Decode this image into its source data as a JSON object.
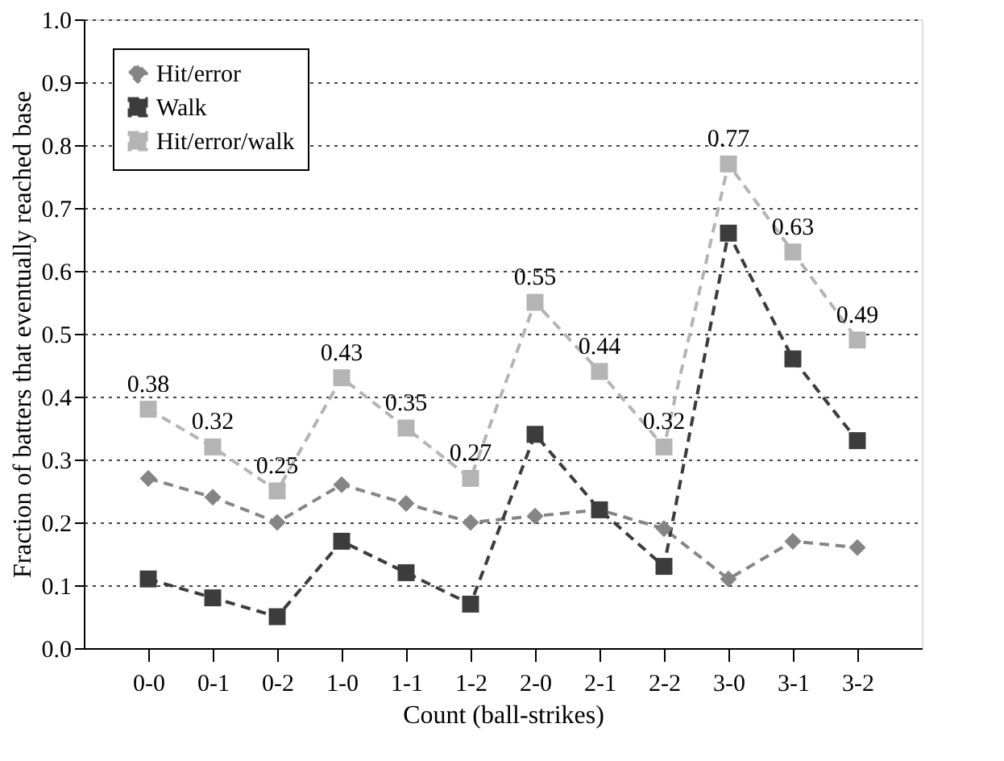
{
  "chart_data": {
    "type": "line",
    "xlabel": "Count (ball-strikes)",
    "ylabel": "Fraction of batters that eventually reached base",
    "categories": [
      "0-0",
      "0-1",
      "0-2",
      "1-0",
      "1-1",
      "1-2",
      "2-0",
      "2-1",
      "2-2",
      "3-0",
      "3-1",
      "3-2"
    ],
    "series": [
      {
        "name": "Hit/error",
        "color": "#858585",
        "marker": "diamond",
        "values": [
          0.27,
          0.24,
          0.2,
          0.26,
          0.23,
          0.2,
          0.21,
          0.22,
          0.19,
          0.11,
          0.17,
          0.16
        ]
      },
      {
        "name": "Walk",
        "color": "#3c3c3c",
        "marker": "square",
        "values": [
          0.11,
          0.08,
          0.05,
          0.17,
          0.12,
          0.07,
          0.34,
          0.22,
          0.13,
          0.66,
          0.46,
          0.33
        ]
      },
      {
        "name": "Hit/error/walk",
        "color": "#b4b4b4",
        "marker": "square",
        "values": [
          0.38,
          0.32,
          0.25,
          0.43,
          0.35,
          0.27,
          0.55,
          0.44,
          0.32,
          0.77,
          0.63,
          0.49
        ],
        "value_labels": [
          "0.38",
          "0.32",
          "0.25",
          "0.43",
          "0.35",
          "0.27",
          "0.55",
          "0.44",
          "0.32",
          "0.77",
          "0.63",
          "0.49"
        ]
      }
    ],
    "ylim": [
      0,
      1
    ],
    "yticks": [
      {
        "value": 0,
        "label": "0.0"
      },
      0.1,
      0.2,
      0.3,
      0.4,
      0.5,
      0.6,
      0.7,
      0.8,
      0.9,
      {
        "value": 1,
        "label": "1.0"
      }
    ],
    "grid": "y",
    "legend": "top left",
    "line_style": "dashed"
  }
}
